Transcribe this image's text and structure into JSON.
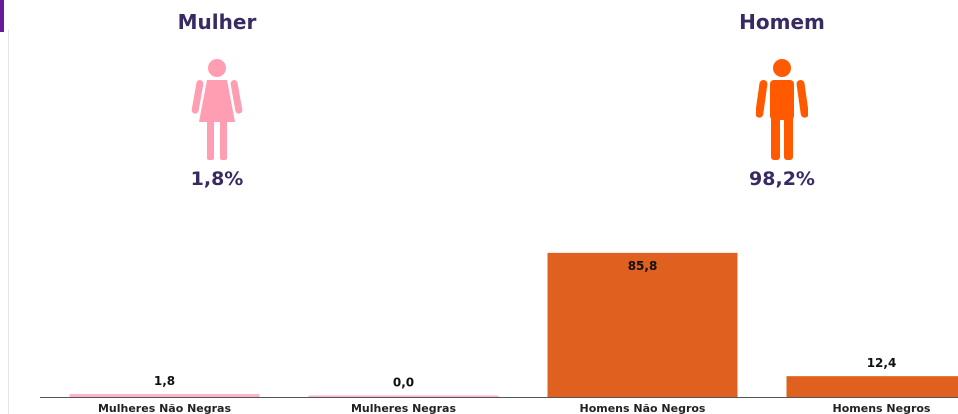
{
  "gender_summary": {
    "female": {
      "label": "Mulher",
      "percent": "1,8%",
      "color": "#ff9db3",
      "icon": "female-person-icon"
    },
    "male": {
      "label": "Homem",
      "percent": "98,2%",
      "color": "#ff5a00",
      "icon": "male-person-icon"
    }
  },
  "chart_data": {
    "type": "bar",
    "categories": [
      "Mulheres Não Negras",
      "Mulheres Negras",
      "Homens Não Negros",
      "Homens Negros"
    ],
    "values": [
      1.8,
      0.0,
      85.8,
      12.4
    ],
    "value_labels": [
      "1,8",
      "0,0",
      "85,8",
      "12,4"
    ],
    "colors": [
      "#ffb3c6",
      "#ffb3c6",
      "#e0601f",
      "#e0601f"
    ],
    "ylim": [
      0,
      100
    ],
    "grid": false,
    "legend": "none"
  }
}
